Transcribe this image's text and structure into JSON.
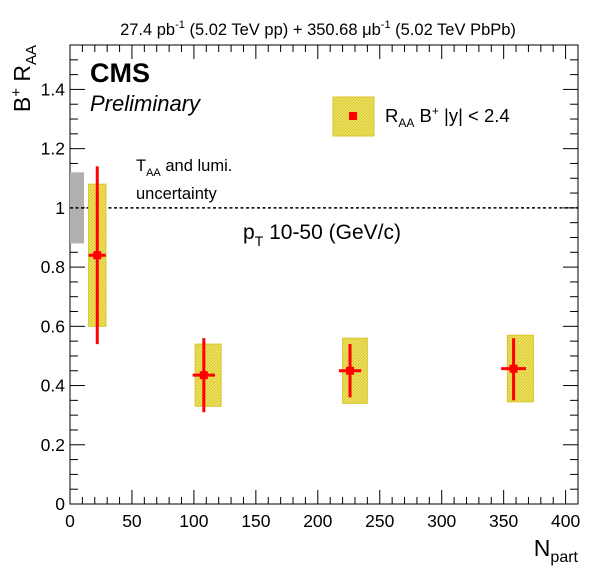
{
  "chart_data": {
    "type": "scatter",
    "header": {
      "pp_lumi": "27.4 pb",
      "pp_exp": "-1",
      "pp_label": " (5.02 TeV pp) + ",
      "pbpb_lumi": "350.68 μb",
      "pbpb_exp": "-1",
      "pbpb_label": " (5.02 TeV PbPb)"
    },
    "experiment": "CMS",
    "status": "Preliminary",
    "xlabel_main": "N",
    "xlabel_sub": "part",
    "ylabel_main": "B",
    "ylabel_sup": "+",
    "ylabel_R": " R",
    "ylabel_sub": "AA",
    "xlim": [
      0,
      410
    ],
    "ylim": [
      0,
      1.55
    ],
    "xticks": [
      0,
      50,
      100,
      150,
      200,
      250,
      300,
      350,
      400
    ],
    "yticks": [
      0,
      0.2,
      0.4,
      0.6,
      0.8,
      1,
      1.2,
      1.4
    ],
    "xtick_labels": [
      "0",
      "50",
      "100",
      "150",
      "200",
      "250",
      "300",
      "350",
      "400"
    ],
    "ytick_labels": [
      "0",
      "0.2",
      "0.4",
      "0.6",
      "0.8",
      "1",
      "1.2",
      "1.4"
    ],
    "reference_line": 1.0,
    "global_uncertainty": {
      "low": 0.88,
      "high": 1.12
    },
    "global_unc_label": {
      "T": "T",
      "sub": "AA",
      "rest": " and lumi.",
      "line2": "uncertainty"
    },
    "pt_label": {
      "p": "p",
      "sub": "T",
      "rest": " 10-50 (GeV/c)"
    },
    "legend": {
      "R": "R",
      "sub": "AA",
      "B": " B",
      "sup": "+",
      "rest": " |y| < 2.4",
      "placement": "top-right"
    },
    "points": [
      {
        "x": 22,
        "y": 0.84,
        "xerr": 7,
        "stat_low": 0.54,
        "stat_high": 1.14,
        "sys_low": 0.6,
        "sys_high": 1.08,
        "box_xlow": 15,
        "box_xhigh": 29
      },
      {
        "x": 108,
        "y": 0.435,
        "xerr": 9,
        "stat_low": 0.31,
        "stat_high": 0.56,
        "sys_low": 0.33,
        "sys_high": 0.54,
        "box_xlow": 101,
        "box_xhigh": 122
      },
      {
        "x": 226,
        "y": 0.45,
        "xerr": 9,
        "stat_low": 0.36,
        "stat_high": 0.54,
        "sys_low": 0.34,
        "sys_high": 0.56,
        "box_xlow": 220,
        "box_xhigh": 240
      },
      {
        "x": 358,
        "y": 0.457,
        "xerr": 10,
        "stat_low": 0.35,
        "stat_high": 0.56,
        "sys_low": 0.345,
        "sys_high": 0.57,
        "box_xlow": 353,
        "box_xhigh": 374
      }
    ],
    "colors": {
      "marker": "#ff0000",
      "box_fill": "#f0e35c",
      "box_edge": "#d8c62a",
      "global_box": "#b0b0b0"
    }
  }
}
